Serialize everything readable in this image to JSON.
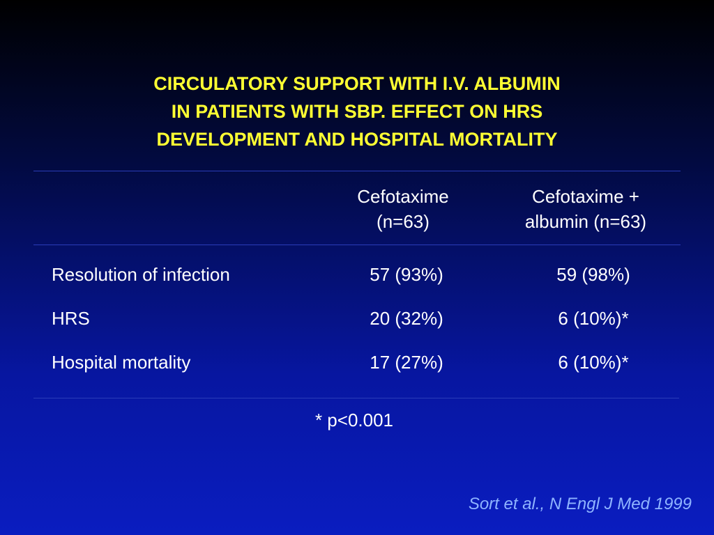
{
  "slide": {
    "title_lines": [
      "CIRCULATORY SUPPORT WITH I.V. ALBUMIN",
      "IN PATIENTS WITH SBP. EFFECT ON HRS",
      "DEVELOPMENT AND HOSPITAL MORTALITY"
    ],
    "colors": {
      "title": "#ffff33",
      "text": "#ffffff",
      "citation": "#8fb4ff",
      "background_top": "#000000",
      "background_bottom": "#0a1dc0"
    }
  },
  "table": {
    "columns": [
      {
        "lines": [
          "Cefotaxime",
          "(n=63)"
        ]
      },
      {
        "lines": [
          "Cefotaxime +",
          "albumin (n=63)"
        ]
      }
    ],
    "rows": [
      {
        "label": "Resolution of infection",
        "cefotaxime": "57 (93%)",
        "cefotaxime_albumin": "59 (98%)"
      },
      {
        "label": "HRS",
        "cefotaxime": "20 (32%)",
        "cefotaxime_albumin": "6 (10%)*"
      },
      {
        "label": "Hospital mortality",
        "cefotaxime": "17 (27%)",
        "cefotaxime_albumin": "6 (10%)*"
      }
    ]
  },
  "footnote": "* p<0.001",
  "citation": "Sort et al., N Engl J Med 1999"
}
